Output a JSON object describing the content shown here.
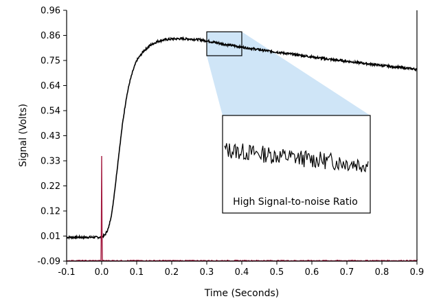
{
  "chart_data": {
    "type": "line",
    "title": "",
    "xlabel": "Time (Seconds)",
    "ylabel": "Signal (Volts)",
    "xlim": [
      -0.1,
      0.9
    ],
    "ylim": [
      -0.09,
      0.96
    ],
    "x_ticks": [
      "-0.1",
      "0.0",
      "0.1",
      "0.2",
      "0.3",
      "0.4",
      "0.5",
      "0.6",
      "0.7",
      "0.8",
      "0.9"
    ],
    "y_ticks": [
      "-0.09",
      "0.01",
      "0.12",
      "0.22",
      "0.33",
      "0.43",
      "0.54",
      "0.64",
      "0.75",
      "0.86",
      "0.96"
    ],
    "grid": false,
    "legend": "none",
    "series": [
      {
        "color": "#000000",
        "x": [
          -0.1,
          -0.05,
          0.0,
          0.01,
          0.02,
          0.03,
          0.04,
          0.05,
          0.06,
          0.07,
          0.08,
          0.09,
          0.1,
          0.12,
          0.14,
          0.16,
          0.18,
          0.2,
          0.22,
          0.25,
          0.28,
          0.3,
          0.35,
          0.4,
          0.45,
          0.5,
          0.55,
          0.6,
          0.65,
          0.7,
          0.75,
          0.8,
          0.85,
          0.9
        ],
        "y": [
          0.01,
          0.01,
          0.01,
          0.02,
          0.05,
          0.12,
          0.24,
          0.37,
          0.49,
          0.59,
          0.66,
          0.71,
          0.75,
          0.79,
          0.815,
          0.83,
          0.837,
          0.84,
          0.841,
          0.84,
          0.837,
          0.832,
          0.818,
          0.806,
          0.795,
          0.785,
          0.775,
          0.765,
          0.755,
          0.747,
          0.738,
          0.729,
          0.721,
          0.713
        ]
      },
      {
        "color": "#a3193e",
        "x": [
          -0.1,
          -0.002,
          -0.001,
          0.0,
          0.001,
          0.002,
          0.9
        ],
        "y": [
          -0.088,
          -0.088,
          0.05,
          0.35,
          0.05,
          -0.088,
          -0.088
        ]
      }
    ],
    "zoom_box": {
      "x": [
        0.3,
        0.4
      ],
      "y": [
        0.77,
        0.87
      ]
    },
    "inset": {
      "caption": "High Signal-to-noise Ratio"
    }
  }
}
